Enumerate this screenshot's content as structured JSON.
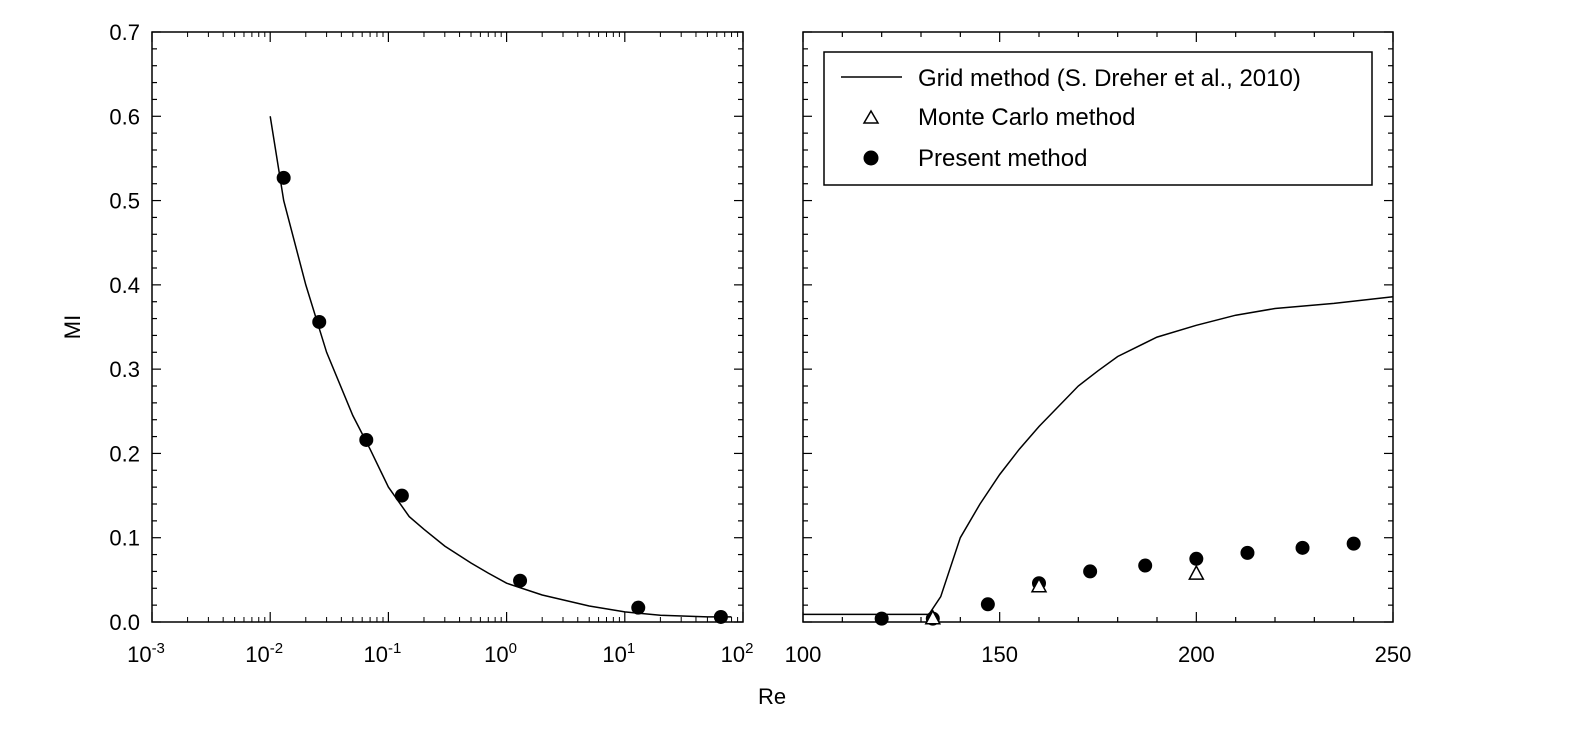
{
  "chart_data": [
    {
      "type": "scatter",
      "panel": "left",
      "x_scale": "log",
      "xlim": [
        0.001,
        100
      ],
      "ylim": [
        0,
        0.7
      ],
      "ylabel": "MI",
      "xlabel": "Re",
      "x_ticks": [
        {
          "base": "10",
          "exp": "-3"
        },
        {
          "base": "10",
          "exp": "-2"
        },
        {
          "base": "10",
          "exp": "-1"
        },
        {
          "base": "10",
          "exp": "0"
        },
        {
          "base": "10",
          "exp": "1"
        },
        {
          "base": "10",
          "exp": "2"
        }
      ],
      "y_ticks": [
        "0.0",
        "0.1",
        "0.2",
        "0.3",
        "0.4",
        "0.5",
        "0.6",
        "0.7"
      ],
      "grid": false,
      "series": [
        {
          "name": "Grid method (S. Dreher et al., 2010)",
          "kind": "line",
          "x": [
            0.01,
            0.013,
            0.02,
            0.03,
            0.05,
            0.07,
            0.1,
            0.15,
            0.2,
            0.3,
            0.5,
            0.7,
            1,
            2,
            5,
            10,
            20,
            50,
            80
          ],
          "y": [
            0.6,
            0.5,
            0.4,
            0.32,
            0.245,
            0.205,
            0.16,
            0.125,
            0.11,
            0.09,
            0.07,
            0.058,
            0.046,
            0.032,
            0.019,
            0.012,
            0.008,
            0.006,
            0.006
          ]
        },
        {
          "name": "Present method",
          "kind": "marker",
          "x": [
            0.013,
            0.026,
            0.065,
            0.13,
            1.3,
            13,
            65
          ],
          "y": [
            0.527,
            0.356,
            0.216,
            0.15,
            0.049,
            0.017,
            0.006
          ]
        }
      ]
    },
    {
      "type": "scatter",
      "panel": "right",
      "xlim": [
        100,
        250
      ],
      "ylim": [
        0,
        0.7
      ],
      "x_ticks": [
        "100",
        "150",
        "200",
        "250"
      ],
      "grid": false,
      "legend": {
        "position": "top-right",
        "entries": [
          "Grid method (S. Dreher et al., 2010)",
          "Monte Carlo method",
          "Present method"
        ]
      },
      "series": [
        {
          "name": "Grid method (S. Dreher et al., 2010)",
          "kind": "line",
          "x": [
            100,
            132,
            135,
            140,
            145,
            150,
            155,
            160,
            170,
            175,
            180,
            190,
            200,
            210,
            220,
            235,
            250
          ],
          "y": [
            0.009,
            0.009,
            0.03,
            0.1,
            0.14,
            0.175,
            0.205,
            0.232,
            0.28,
            0.298,
            0.315,
            0.338,
            0.352,
            0.364,
            0.372,
            0.378,
            0.386
          ]
        },
        {
          "name": "Monte Carlo method",
          "kind": "marker",
          "x": [
            133,
            160,
            200
          ],
          "y": [
            0.005,
            0.043,
            0.058
          ]
        },
        {
          "name": "Present method",
          "kind": "marker",
          "x": [
            120,
            133,
            147,
            160,
            173,
            187,
            200,
            213,
            227,
            240
          ],
          "y": [
            0.004,
            0.004,
            0.021,
            0.046,
            0.06,
            0.067,
            0.075,
            0.082,
            0.088,
            0.093
          ]
        }
      ]
    }
  ]
}
